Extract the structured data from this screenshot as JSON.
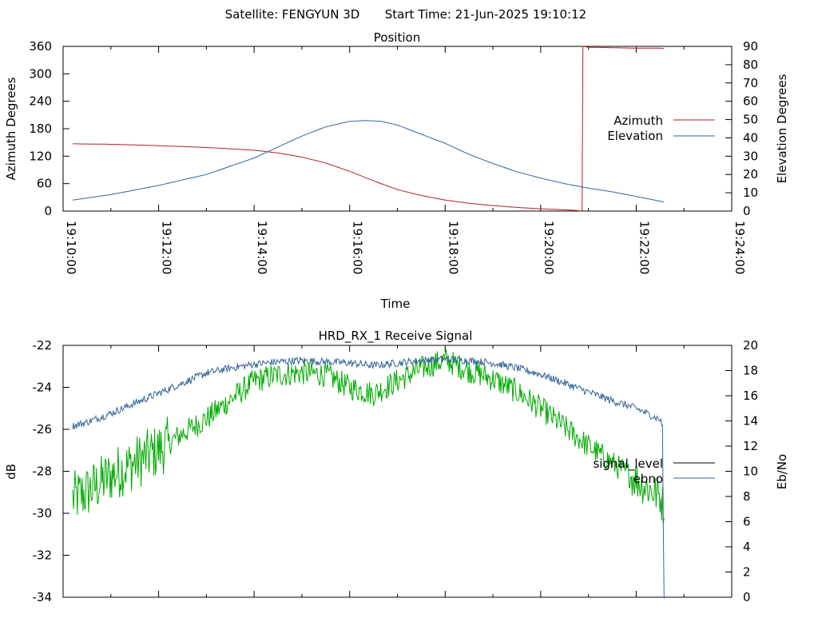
{
  "header": {
    "satellite_label": "Satellite: FENGYUN 3D",
    "start_time_label": "Start Time: 21-Jun-2025 19:10:12"
  },
  "colors": {
    "azimuth": "#b22222",
    "elevation": "#336699",
    "signal_level": "#00aa00",
    "ebno": "#336699",
    "signal_legend": "#000000"
  },
  "chart_data": [
    {
      "type": "line",
      "title": "Position",
      "xlabel": "Time",
      "ylabel": "Azimuth Degrees",
      "y2label": "Elevation Degrees",
      "xlim": [
        "19:10:00",
        "19:24:00"
      ],
      "ylim": [
        0,
        360
      ],
      "y2lim": [
        0,
        90
      ],
      "x_ticks": [
        "19:10:00",
        "19:12:00",
        "19:14:00",
        "19:16:00",
        "19:18:00",
        "19:20:00",
        "19:22:00",
        "19:24:00"
      ],
      "y_ticks": [
        0,
        60,
        120,
        180,
        240,
        300,
        360
      ],
      "y2_ticks": [
        0,
        10,
        20,
        30,
        40,
        50,
        60,
        70,
        80,
        90
      ],
      "legend_position": "right",
      "series": [
        {
          "name": "Azimuth",
          "axis": "y",
          "x": [
            "19:10:12",
            "19:11:00",
            "19:12:00",
            "19:13:00",
            "19:14:00",
            "19:14:30",
            "19:15:00",
            "19:15:30",
            "19:16:00",
            "19:16:30",
            "19:17:00",
            "19:17:30",
            "19:18:00",
            "19:18:30",
            "19:19:00",
            "19:19:30",
            "19:20:00",
            "19:20:40",
            "19:20:52",
            "19:20:53",
            "19:21:00",
            "19:21:30",
            "19:22:00",
            "19:22:30",
            "19:22:35"
          ],
          "values": [
            147,
            146,
            143,
            139,
            133,
            127,
            118,
            105,
            87,
            66,
            47,
            34,
            24,
            17,
            12,
            8,
            5,
            2,
            0,
            360,
            358,
            357,
            356,
            356,
            355
          ]
        },
        {
          "name": "Elevation",
          "axis": "y2",
          "x": [
            "19:10:12",
            "19:11:00",
            "19:12:00",
            "19:13:00",
            "19:14:00",
            "19:14:30",
            "19:15:00",
            "19:15:30",
            "19:16:00",
            "19:16:20",
            "19:16:40",
            "19:17:00",
            "19:17:30",
            "19:18:00",
            "19:18:30",
            "19:19:00",
            "19:19:30",
            "19:20:00",
            "19:20:30",
            "19:21:00",
            "19:21:30",
            "19:22:00",
            "19:22:35"
          ],
          "values": [
            6,
            9,
            14,
            20,
            29,
            35,
            41,
            46,
            49,
            49.5,
            49,
            47,
            42,
            37,
            31,
            26,
            21.5,
            18,
            15,
            12.5,
            10.5,
            8,
            5
          ]
        }
      ]
    },
    {
      "type": "line",
      "title": "HRD_RX_1 Receive Signal",
      "xlabel": "",
      "ylabel": "dB",
      "y2label": "Eb/No",
      "xlim": [
        "19:10:00",
        "19:24:00"
      ],
      "ylim": [
        -34,
        -22
      ],
      "y2lim": [
        0,
        20
      ],
      "y_ticks": [
        -34,
        -32,
        -30,
        -28,
        -26,
        -24,
        -22
      ],
      "y2_ticks": [
        0,
        2,
        4,
        6,
        8,
        10,
        12,
        14,
        16,
        18,
        20
      ],
      "legend_position": "right",
      "series": [
        {
          "name": "signal_level",
          "axis": "y",
          "x": [
            "19:10:12",
            "19:10:30",
            "19:11:00",
            "19:11:30",
            "19:12:00",
            "19:12:30",
            "19:13:00",
            "19:13:30",
            "19:14:00",
            "19:14:30",
            "19:15:00",
            "19:15:30",
            "19:16:00",
            "19:16:30",
            "19:17:00",
            "19:17:30",
            "19:18:00",
            "19:18:30",
            "19:19:00",
            "19:19:30",
            "19:20:00",
            "19:20:30",
            "19:21:00",
            "19:21:30",
            "19:22:00",
            "19:22:30",
            "19:22:35"
          ],
          "values": [
            -29.3,
            -29.0,
            -28.2,
            -27.6,
            -27.0,
            -26.2,
            -25.5,
            -24.6,
            -23.7,
            -23.4,
            -23.3,
            -23.4,
            -24.0,
            -24.3,
            -23.7,
            -23.1,
            -22.7,
            -23.2,
            -23.6,
            -24.2,
            -25.0,
            -25.9,
            -26.8,
            -27.6,
            -28.4,
            -29.2,
            -29.8
          ]
        },
        {
          "name": "ebno",
          "axis": "y2",
          "x": [
            "19:10:12",
            "19:10:30",
            "19:11:00",
            "19:11:30",
            "19:12:00",
            "19:12:30",
            "19:13:00",
            "19:13:30",
            "19:14:00",
            "19:14:30",
            "19:15:00",
            "19:15:30",
            "19:16:00",
            "19:16:30",
            "19:17:00",
            "19:17:30",
            "19:18:00",
            "19:18:30",
            "19:19:00",
            "19:19:30",
            "19:20:00",
            "19:20:30",
            "19:21:00",
            "19:21:30",
            "19:22:00",
            "19:22:30",
            "19:22:33",
            "19:22:34",
            "19:22:35"
          ],
          "values": [
            13.6,
            13.9,
            14.6,
            15.4,
            16.2,
            17.0,
            17.8,
            18.2,
            18.5,
            18.7,
            18.8,
            18.7,
            18.6,
            18.4,
            18.6,
            18.8,
            18.9,
            18.8,
            18.6,
            18.2,
            17.7,
            17.0,
            16.3,
            15.6,
            15.0,
            14.1,
            13.6,
            6.0,
            0
          ]
        }
      ]
    }
  ]
}
